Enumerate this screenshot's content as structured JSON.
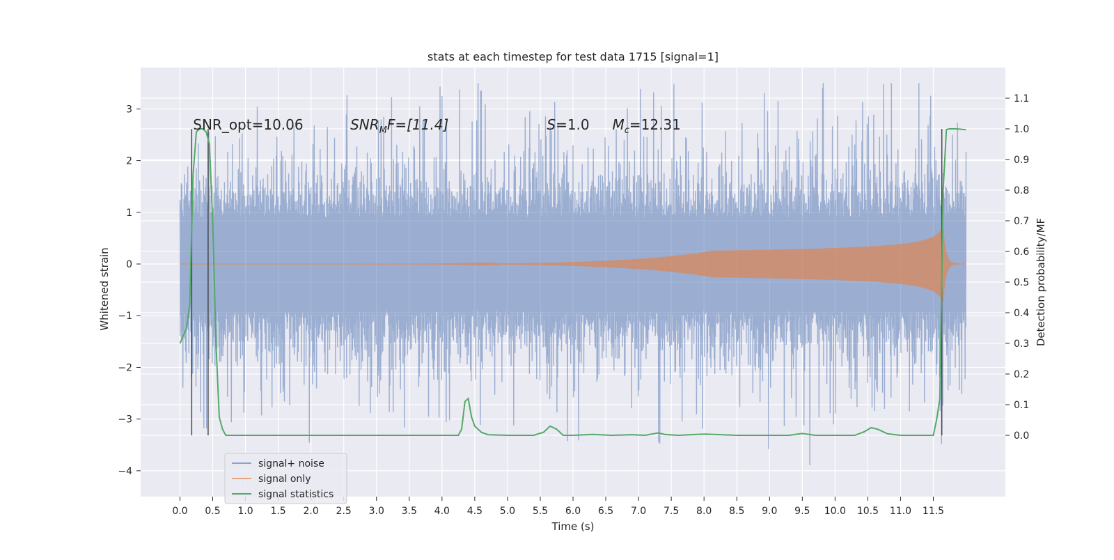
{
  "chart_data": {
    "type": "line",
    "title": "stats at each timestep for test data 1715 [signal=1]",
    "xlabel": "Time (s)",
    "ylabel": "Whitened strain",
    "ylabel_right": "Detection probability/MF",
    "xlim": [
      -0.6,
      12.6
    ],
    "ylim": [
      -4.5,
      3.8
    ],
    "ylim_right": [
      -0.2,
      1.2
    ],
    "x_ticks": [
      "0.0",
      "0.5",
      "1.0",
      "1.5",
      "2.0",
      "2.5",
      "3.0",
      "3.5",
      "4.0",
      "4.5",
      "5.0",
      "5.5",
      "6.0",
      "6.5",
      "7.0",
      "7.5",
      "8.0",
      "8.5",
      "9.0",
      "9.5",
      "10.0",
      "10.5",
      "11.0",
      "11.5"
    ],
    "y_ticks": [
      "3",
      "2",
      "1",
      "0",
      "−1",
      "−2",
      "−3",
      "−4"
    ],
    "y_ticks_right": [
      "1.1",
      "1.0",
      "0.9",
      "0.8",
      "0.7",
      "0.6",
      "0.5",
      "0.4",
      "0.3",
      "0.2",
      "0.1",
      "0.0"
    ],
    "grid": true,
    "legend_position": "lower-left",
    "colors": {
      "background": "#eaeaf2",
      "grid": "#ffffff",
      "noise": "#4c72b0",
      "signal": "#dd8452",
      "stats": "#55a868",
      "markers": "#404040"
    },
    "annotations": {
      "snr_opt": "SNR_opt=10.06",
      "snr_mf_base": "SNR",
      "snr_mf_sub": "M",
      "snr_mf_rest": "F=[11.4]",
      "s_sym": "S",
      "s_rest": "=1.0",
      "mc_base": "M",
      "mc_sub": "c",
      "mc_rest": "=12.31"
    },
    "series": [
      {
        "name": "signal+ noise",
        "description_stats": {
          "t_start": 0.0,
          "t_end": 12.0,
          "typical_envelope": [
            -2.0,
            2.0
          ],
          "max": 3.5,
          "min": -4.1
        }
      },
      {
        "name": "signal only",
        "chirp": {
          "t_start": 0.0,
          "t_merger": 11.65,
          "peak_amplitude": 0.75
        }
      },
      {
        "name": "signal statistics",
        "axis": "right",
        "x": [
          0.0,
          0.1,
          0.15,
          0.2,
          0.25,
          0.3,
          0.35,
          0.4,
          0.45,
          0.5,
          0.55,
          0.6,
          0.65,
          0.7,
          0.8,
          1.0,
          1.5,
          2.0,
          3.0,
          4.0,
          4.25,
          4.3,
          4.35,
          4.4,
          4.45,
          4.5,
          4.6,
          4.7,
          5.0,
          5.4,
          5.55,
          5.65,
          5.75,
          5.85,
          6.0,
          6.3,
          6.6,
          6.9,
          7.1,
          7.3,
          7.4,
          7.6,
          8.0,
          8.5,
          9.0,
          9.3,
          9.5,
          9.7,
          10.0,
          10.3,
          10.45,
          10.55,
          10.65,
          10.8,
          11.0,
          11.3,
          11.5,
          11.55,
          11.6,
          11.65,
          11.7,
          11.75,
          11.85,
          12.0
        ],
        "values": [
          0.3,
          0.35,
          0.43,
          0.85,
          0.99,
          1.0,
          1.0,
          0.99,
          0.95,
          0.7,
          0.3,
          0.06,
          0.02,
          0.0,
          0.0,
          0.0,
          0.0,
          0.0,
          0.0,
          0.0,
          0.0,
          0.02,
          0.11,
          0.12,
          0.06,
          0.03,
          0.01,
          0.002,
          0.0,
          0.0,
          0.01,
          0.03,
          0.02,
          0.0,
          0.0,
          0.003,
          0.0,
          0.002,
          0.0,
          0.008,
          0.003,
          0.0,
          0.004,
          0.0,
          0.0,
          0.0,
          0.006,
          0.0,
          0.0,
          0.0,
          0.012,
          0.025,
          0.02,
          0.005,
          0.0,
          0.0,
          0.0,
          0.05,
          0.12,
          0.8,
          0.998,
          1.0,
          1.0,
          0.997
        ]
      }
    ],
    "vertical_markers_x": [
      0.18,
      0.43,
      11.63
    ]
  }
}
